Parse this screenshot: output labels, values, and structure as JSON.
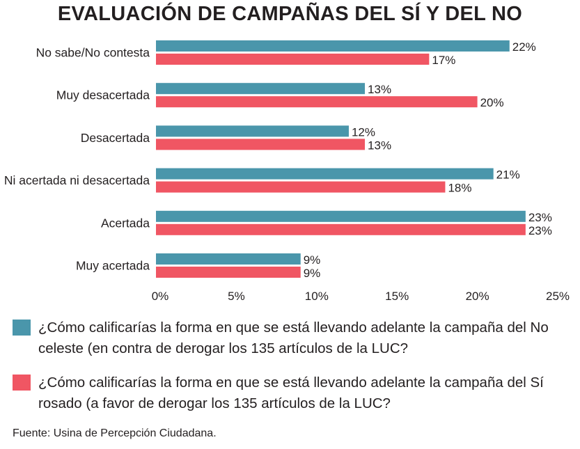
{
  "chart_data": {
    "type": "bar",
    "orientation": "horizontal",
    "title": "EVALUACIÓN DE CAMPAÑAS DEL SÍ Y DEL NO",
    "categories": [
      "No sabe/No contesta",
      "Muy desacertada",
      "Desacertada",
      "Ni acertada ni desacertada",
      "Acertada",
      "Muy acertada"
    ],
    "series": [
      {
        "name": "No",
        "color": "#4a96ab",
        "values": [
          22,
          13,
          12,
          21,
          23,
          9
        ],
        "labels": [
          "22%",
          "13%",
          "12%",
          "21%",
          "23%",
          "9%"
        ]
      },
      {
        "name": "Sí",
        "color": "#f05663",
        "values": [
          17,
          20,
          13,
          18,
          23,
          9
        ],
        "labels": [
          "17%",
          "20%",
          "13%",
          "18%",
          "23%",
          "9%"
        ]
      }
    ],
    "xlim": [
      0,
      25
    ],
    "xticks": [
      0,
      5,
      10,
      15,
      20,
      25
    ],
    "xtick_labels": [
      "0%",
      "5%",
      "10%",
      "15%",
      "20%",
      "25%"
    ],
    "grid": false,
    "legend_position": "bottom"
  },
  "legend": {
    "items": [
      {
        "color": "#4a96ab",
        "text": "¿Cómo calificarías la forma en que se está llevando adelante la campaña del No celeste (en contra de derogar los 135 artículos de la LUC?"
      },
      {
        "color": "#f05663",
        "text": "¿Cómo calificarías la forma en que se está llevando adelante la campaña del Sí rosado (a favor de derogar los 135 artículos de la LUC?"
      }
    ]
  },
  "source": "Fuente: Usina de Percepción Ciudadana."
}
